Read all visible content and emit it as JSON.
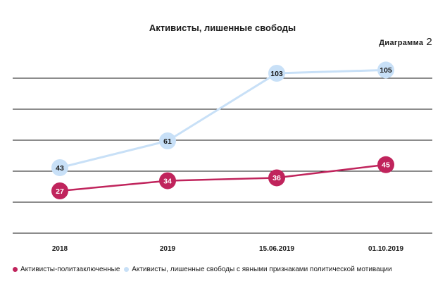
{
  "title": "Активисты, лишенные свободы",
  "diagram_label": "Диаграмма",
  "diagram_number": "2",
  "legend": [
    {
      "label": "Активисты-политзаключенные",
      "color": "#c0245c"
    },
    {
      "label": "Активисты, лишенные свободы с явными признаками политической мотивации",
      "color": "#c8e0f7"
    }
  ],
  "chart_data": {
    "type": "line",
    "title": "Активисты, лишенные свободы",
    "categories": [
      "2018",
      "2019",
      "15.06.2019",
      "01.10.2019"
    ],
    "series": [
      {
        "name": "Активисты-политзаключенные",
        "values": [
          27,
          34,
          36,
          45
        ],
        "color": "#c0245c"
      },
      {
        "name": "Активисты, лишенные свободы с явными признаками политической мотивации",
        "values": [
          43,
          61,
          103,
          105
        ],
        "color": "#c8e0f7"
      }
    ],
    "grid": true,
    "legend_position": "bottom-left"
  }
}
